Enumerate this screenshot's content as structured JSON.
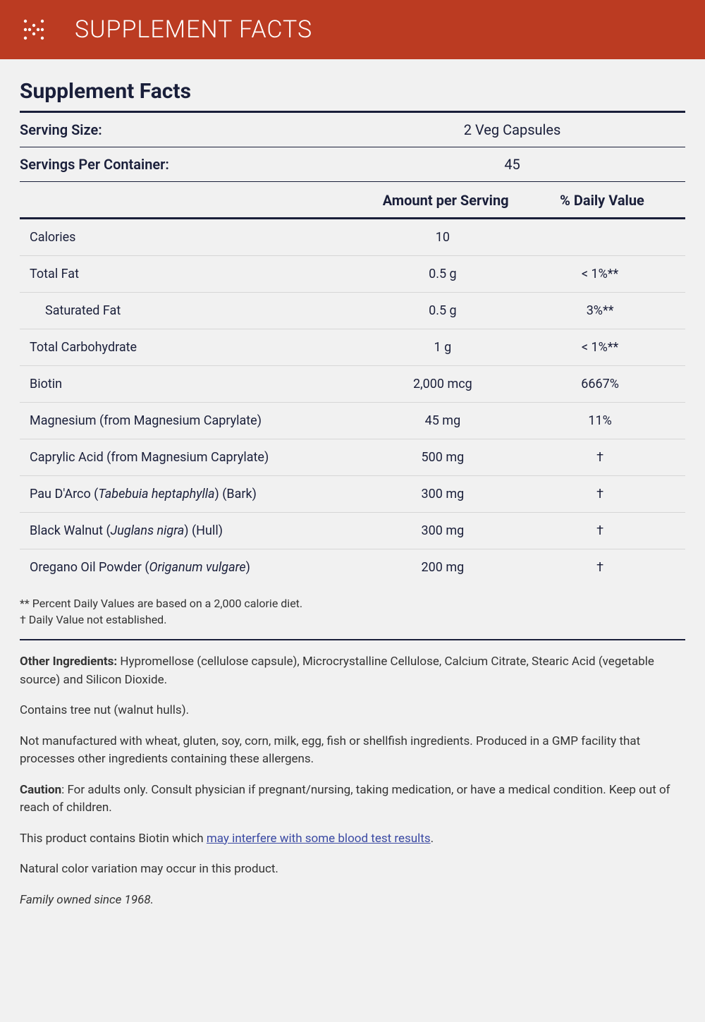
{
  "header": {
    "title": "SUPPLEMENT FACTS",
    "bg_color": "#bb3b22",
    "text_color": "#ffffff"
  },
  "facts_title": "Supplement Facts",
  "serving": [
    {
      "label": "Serving Size:",
      "value": "2 Veg Capsules"
    },
    {
      "label": "Servings Per Container:",
      "value": "45"
    }
  ],
  "column_headers": {
    "amount": "Amount per Serving",
    "dv": "% Daily Value"
  },
  "nutrients": [
    {
      "name": "Calories",
      "amount": "10",
      "dv": ""
    },
    {
      "name": "Total Fat",
      "amount": "0.5 g",
      "dv": "< 1%**"
    },
    {
      "name": "Saturated Fat",
      "amount": "0.5 g",
      "dv": "3%**",
      "indent": true
    },
    {
      "name": "Total Carbohydrate",
      "amount": "1 g",
      "dv": "< 1%**"
    },
    {
      "name": "Biotin",
      "amount": "2,000 mcg",
      "dv": "6667%"
    },
    {
      "name": "Magnesium (from Magnesium Caprylate)",
      "amount": "45 mg",
      "dv": "11%"
    },
    {
      "name": "Caprylic Acid (from Magnesium Caprylate)",
      "amount": "500 mg",
      "dv": "†"
    },
    {
      "name_html": "Pau D'Arco (<em class='sci'>Tabebuia heptaphylla</em>) (Bark)",
      "amount": "300 mg",
      "dv": "†"
    },
    {
      "name_html": "Black Walnut (<em class='sci'>Juglans nigra</em>) (Hull)",
      "amount": "300 mg",
      "dv": "†"
    },
    {
      "name_html": "Oregano Oil Powder (<em class='sci'>Origanum vulgare</em>)",
      "amount": "200 mg",
      "dv": "†"
    }
  ],
  "footnotes": [
    "** Percent Daily Values are based on a 2,000 calorie diet.",
    "† Daily Value not established."
  ],
  "other": {
    "ingredients_label": "Other Ingredients:",
    "ingredients": "  Hypromellose (cellulose capsule), Microcrystalline Cellulose, Calcium Citrate, Stearic Acid (vegetable source) and Silicon Dioxide.",
    "contains": "Contains tree nut (walnut hulls).",
    "not_manufactured": "Not manufactured with wheat, gluten, soy, corn, milk, egg, fish or shellfish ingredients. Produced in a GMP facility that processes other ingredients containing these allergens.",
    "caution_label": "Caution",
    "caution": ": For adults only. Consult physician if pregnant/nursing, taking medication, or have a medical condition. Keep out of reach of children.",
    "biotin_pre": "This product contains Biotin which ",
    "biotin_link": "may interfere with some blood test results",
    "biotin_post": ".",
    "color_variation": "Natural color variation may occur in this product.",
    "family": "Family owned since 1968."
  },
  "colors": {
    "page_bg": "#f1f1f1",
    "heading_color": "#1a1f3a",
    "link_color": "#3b4aa3",
    "row_border": "#d6d6d6"
  }
}
